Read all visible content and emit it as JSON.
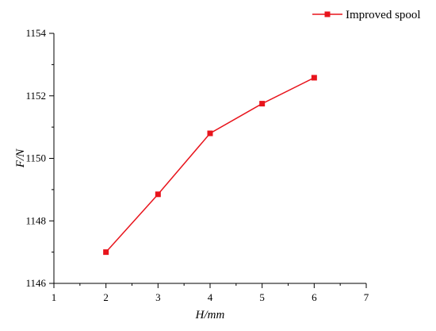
{
  "chart_data": {
    "type": "line",
    "title": "",
    "xlabel": "H/mm",
    "ylabel": "F/N",
    "xlim": [
      1,
      7
    ],
    "ylim": [
      1146,
      1154
    ],
    "xticks": [
      1,
      2,
      3,
      4,
      5,
      6,
      7
    ],
    "yticks": [
      1146,
      1148,
      1150,
      1152,
      1154
    ],
    "grid": false,
    "legend_position": "top-right",
    "series": [
      {
        "name": "Improved spool",
        "color": "#e8141c",
        "marker": "square",
        "x": [
          2,
          3,
          4,
          5,
          6
        ],
        "y": [
          1147.0,
          1148.85,
          1150.8,
          1151.75,
          1152.58
        ]
      }
    ]
  }
}
